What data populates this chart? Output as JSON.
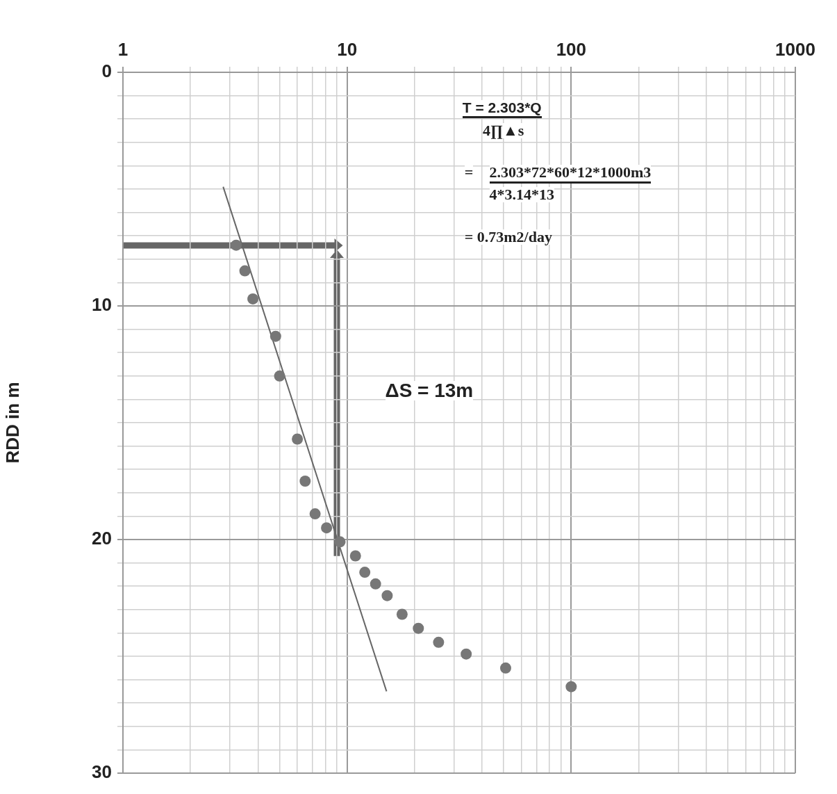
{
  "chart_data": {
    "type": "scatter",
    "ylabel": "RDD in m",
    "xlim": [
      1,
      1000
    ],
    "ylim": [
      30,
      0
    ],
    "log": "x",
    "grid": true,
    "legend": false,
    "marker": "circle",
    "xticks": [
      1,
      {
        "value": 2,
        "label": null
      },
      {
        "value": 3,
        "label": null
      },
      {
        "value": 4,
        "label": null
      },
      {
        "value": 5,
        "label": null
      },
      {
        "value": 6,
        "label": null
      },
      {
        "value": 7,
        "label": null
      },
      {
        "value": 8,
        "label": null
      },
      {
        "value": 9,
        "label": null
      },
      10,
      {
        "value": 20,
        "label": null
      },
      {
        "value": 30,
        "label": null
      },
      {
        "value": 40,
        "label": null
      },
      {
        "value": 50,
        "label": null
      },
      {
        "value": 60,
        "label": null
      },
      {
        "value": 70,
        "label": null
      },
      {
        "value": 80,
        "label": null
      },
      {
        "value": 90,
        "label": null
      },
      100,
      {
        "value": 200,
        "label": null
      },
      {
        "value": 300,
        "label": null
      },
      {
        "value": 400,
        "label": null
      },
      {
        "value": 500,
        "label": null
      },
      {
        "value": 600,
        "label": null
      },
      {
        "value": 700,
        "label": null
      },
      {
        "value": 800,
        "label": null
      },
      {
        "value": 900,
        "label": null
      },
      1000
    ],
    "yticks": [
      0,
      {
        "value": 1,
        "label": null
      },
      {
        "value": 2,
        "label": null
      },
      {
        "value": 3,
        "label": null
      },
      {
        "value": 4,
        "label": null
      },
      {
        "value": 5,
        "label": null
      },
      {
        "value": 6,
        "label": null
      },
      {
        "value": 7,
        "label": null
      },
      {
        "value": 8,
        "label": null
      },
      {
        "value": 9,
        "label": null
      },
      10,
      {
        "value": 11,
        "label": null
      },
      {
        "value": 12,
        "label": null
      },
      {
        "value": 13,
        "label": null
      },
      {
        "value": 14,
        "label": null
      },
      {
        "value": 15,
        "label": null
      },
      {
        "value": 16,
        "label": null
      },
      {
        "value": 17,
        "label": null
      },
      {
        "value": 18,
        "label": null
      },
      {
        "value": 19,
        "label": null
      },
      20,
      {
        "value": 21,
        "label": null
      },
      {
        "value": 22,
        "label": null
      },
      {
        "value": 23,
        "label": null
      },
      {
        "value": 24,
        "label": null
      },
      {
        "value": 25,
        "label": null
      },
      {
        "value": 26,
        "label": null
      },
      {
        "value": 27,
        "label": null
      },
      {
        "value": 28,
        "label": null
      },
      {
        "value": 29,
        "label": null
      },
      30
    ],
    "series": [
      {
        "color": "#777777",
        "x": [
          3.2,
          3.5,
          3.8,
          4.8,
          5.0,
          6.0,
          6.5,
          7.2,
          8.1,
          9.3,
          10.9,
          12,
          13.4,
          15.1,
          17.6,
          20.8,
          25.6,
          34,
          51,
          100
        ],
        "values": [
          7.4,
          8.5,
          9.7,
          11.3,
          13.0,
          15.7,
          17.5,
          18.9,
          19.5,
          20.1,
          20.7,
          21.4,
          21.9,
          22.4,
          23.2,
          23.8,
          24.4,
          24.9,
          25.5,
          26.3
        ]
      },
      {
        "type": "line",
        "color": "#666666",
        "marker": "none",
        "x": [
          2.8,
          15
        ],
        "values": [
          4.9,
          26.5
        ]
      }
    ],
    "annotations": [
      "T = 2.303*Q",
      "4∏▲s",
      "=",
      "2.303*72*60*12*1000m3",
      "4*3.14*13",
      "= 0.73m2/day",
      "ΔS = 13m"
    ]
  }
}
